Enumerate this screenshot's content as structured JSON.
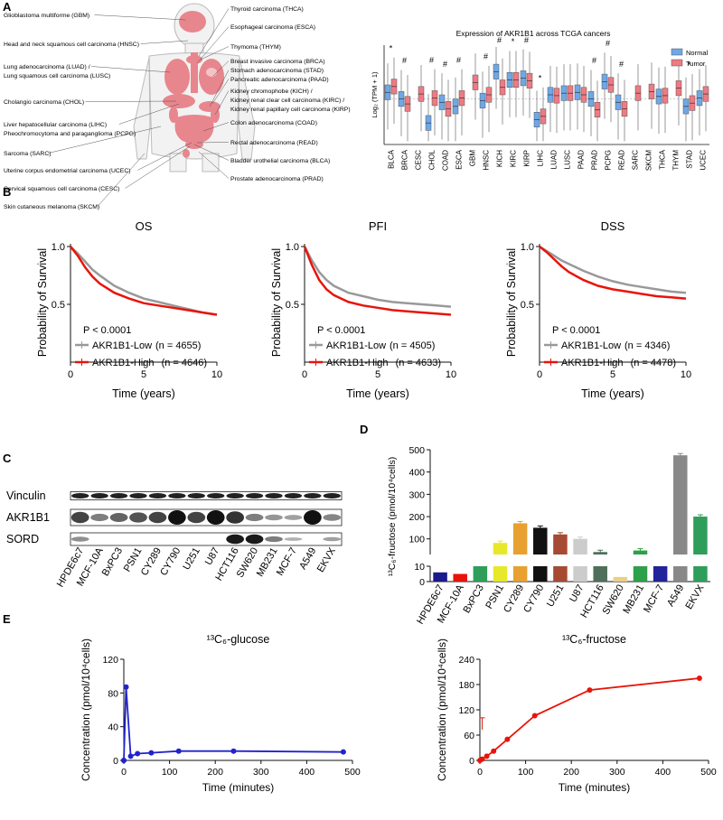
{
  "panels": {
    "a": "A",
    "b": "B",
    "c": "C",
    "d": "D",
    "e": "E"
  },
  "body_map": {
    "left_labels": [
      "Glioblastoma multiforme (GBM)",
      "Head and neck squamous cell carcinoma (HNSC)",
      "Lung adenocarcinoma (LUAD) /",
      "Lung squamous cell carcinoma (LUSC)",
      "Cholangio carcinoma (CHOL)",
      "Liver hepatocellular carcinoma (LIHC)",
      "Pheochromocytoma and paraganglioma (PCPG)",
      "Sarcoma (SARC)",
      "Uterine corpus endometrial carcinoma (UCEC)",
      "Cervical squamous cell carcinoma (CESC)",
      "Skin cutaneous melanoma (SKCM)"
    ],
    "right_labels": [
      "Thyroid carcinoma (THCA)",
      "Esophageal carcinoma (ESCA)",
      "Thymoma (THYM)",
      "Breast invasive carcinoma (BRCA)",
      "Stomach adenocarcinoma (STAD)",
      "Pancreatic adenocarcinoma (PAAD)",
      "Kidney chromophobe (KICH) /",
      "Kidney renal clear cell carcinoma (KIRC) /",
      "Kidney renal papillary cell carcinoma (KIRP)",
      "Colon adenocarcinoma (COAD)",
      "Rectal adenocarcinoma (READ)",
      "Bladder urothelial carcinoma (BLCA)",
      "Prostate adenocarcinoma (PRAD)"
    ]
  },
  "chart_data": [
    {
      "id": "tcga_boxplot",
      "type": "box",
      "title": "Expression of AKR1B1 across TCGA cancers",
      "ylabel": "Log₂ (TPM + 1)",
      "legend": [
        "Normal",
        "Tumor"
      ],
      "legend_position": "top-right",
      "colors": {
        "normal": "#6fa8e8",
        "tumor": "#ee7a84"
      },
      "categories": [
        "BLCA",
        "BRCA",
        "CESC",
        "CHOL",
        "COAD",
        "ESCA",
        "GBM",
        "HNSC",
        "KICH",
        "KIRC",
        "KIRP",
        "LIHC",
        "LUAD",
        "LUSC",
        "PAAD",
        "PRAD",
        "PCPG",
        "READ",
        "SARC",
        "SKCM",
        "THCA",
        "THYM",
        "STAD",
        "UCEC"
      ],
      "normal_median": [
        6.3,
        5.5,
        null,
        2.6,
        5.1,
        4.6,
        null,
        5.3,
        8.8,
        7.8,
        8.0,
        3.0,
        6.0,
        6.2,
        6.3,
        5.5,
        7.6,
        5.1,
        null,
        null,
        5.8,
        null,
        4.6,
        5.6
      ],
      "tumor_median": [
        7.0,
        4.9,
        6.1,
        5.6,
        4.3,
        5.6,
        7.5,
        6.0,
        6.9,
        7.8,
        7.7,
        3.4,
        5.9,
        6.2,
        6.0,
        4.2,
        7.2,
        4.3,
        6.2,
        6.4,
        5.9,
        6.8,
        5.0,
        6.1
      ],
      "significance": [
        "*",
        "#",
        "",
        "#",
        "#",
        "#",
        "",
        "#",
        "#",
        "*",
        "#",
        "*",
        "",
        "",
        "",
        "#",
        "#",
        "#",
        "",
        "",
        "",
        "",
        "*",
        ""
      ]
    },
    {
      "id": "os",
      "type": "line",
      "title": "OS",
      "xlabel": "Time (years)",
      "ylabel": "Probability of Survival",
      "xlim": [
        0,
        10
      ],
      "ylim": [
        0,
        1.0
      ],
      "xticks": [
        "0",
        "5",
        "10"
      ],
      "yticks": [
        "0.5",
        "1.0"
      ],
      "pvalue": "P < 0.0001",
      "series": [
        {
          "name": "AKR1B1-Low",
          "n": "(n = 4655)",
          "color": "#999999",
          "x": [
            0,
            0.5,
            1,
            1.5,
            2,
            3,
            4,
            5,
            6,
            7,
            8,
            9,
            10
          ],
          "y": [
            1.0,
            0.94,
            0.87,
            0.8,
            0.75,
            0.66,
            0.6,
            0.55,
            0.52,
            0.49,
            0.46,
            0.43,
            0.41
          ]
        },
        {
          "name": "AKR1B1-High",
          "n": "(n = 4646)",
          "color": "#e8140a",
          "x": [
            0,
            0.5,
            1,
            1.5,
            2,
            3,
            4,
            5,
            6,
            7,
            8,
            9,
            10
          ],
          "y": [
            1.0,
            0.92,
            0.82,
            0.74,
            0.68,
            0.6,
            0.55,
            0.51,
            0.49,
            0.47,
            0.45,
            0.43,
            0.41
          ]
        }
      ]
    },
    {
      "id": "pfi",
      "type": "line",
      "title": "PFI",
      "xlabel": "Time (years)",
      "ylabel": "Probability of Survival",
      "xlim": [
        0,
        10
      ],
      "ylim": [
        0,
        1.0
      ],
      "xticks": [
        "0",
        "5",
        "10"
      ],
      "yticks": [
        "0.5",
        "1.0"
      ],
      "pvalue": "P < 0.0001",
      "series": [
        {
          "name": "AKR1B1-Low",
          "n": "(n = 4505)",
          "color": "#999999",
          "x": [
            0,
            0.5,
            1,
            1.5,
            2,
            3,
            4,
            5,
            6,
            7,
            8,
            9,
            10
          ],
          "y": [
            1.0,
            0.88,
            0.78,
            0.71,
            0.66,
            0.6,
            0.57,
            0.54,
            0.52,
            0.51,
            0.5,
            0.49,
            0.48
          ]
        },
        {
          "name": "AKR1B1-High",
          "n": "(n = 4633)",
          "color": "#e8140a",
          "x": [
            0,
            0.5,
            1,
            1.5,
            2,
            3,
            4,
            5,
            6,
            7,
            8,
            9,
            10
          ],
          "y": [
            1.0,
            0.84,
            0.71,
            0.63,
            0.58,
            0.52,
            0.49,
            0.47,
            0.45,
            0.44,
            0.43,
            0.42,
            0.41
          ]
        }
      ]
    },
    {
      "id": "dss",
      "type": "line",
      "title": "DSS",
      "xlabel": "Time (years)",
      "ylabel": "Probability of Survival",
      "xlim": [
        0,
        10
      ],
      "ylim": [
        0,
        1.0
      ],
      "xticks": [
        "0",
        "5",
        "10"
      ],
      "yticks": [
        "0.5",
        "1.0"
      ],
      "pvalue": "P < 0.0001",
      "series": [
        {
          "name": "AKR1B1-Low",
          "n": "(n = 4346)",
          "color": "#999999",
          "x": [
            0,
            0.5,
            1,
            1.5,
            2,
            3,
            4,
            5,
            6,
            7,
            8,
            9,
            10
          ],
          "y": [
            1.0,
            0.96,
            0.92,
            0.88,
            0.85,
            0.79,
            0.74,
            0.7,
            0.67,
            0.65,
            0.63,
            0.61,
            0.6
          ]
        },
        {
          "name": "AKR1B1-High",
          "n": "(n = 4478)",
          "color": "#e8140a",
          "x": [
            0,
            0.5,
            1,
            1.5,
            2,
            3,
            4,
            5,
            6,
            7,
            8,
            9,
            10
          ],
          "y": [
            1.0,
            0.95,
            0.89,
            0.83,
            0.78,
            0.71,
            0.66,
            0.63,
            0.61,
            0.59,
            0.57,
            0.56,
            0.55
          ]
        }
      ]
    },
    {
      "id": "fructose_bars",
      "type": "bar",
      "ylabel": "¹³C₆-fructose (pmol/10⁴cells)",
      "yticks_top": [
        "100",
        "200",
        "300",
        "400",
        "500"
      ],
      "yticks_bottom": [
        "0",
        "10"
      ],
      "categories": [
        "HPDE6c7",
        "MCF-10A",
        "BxPC3",
        "PSN1",
        "CY289",
        "CY790",
        "U251",
        "U87",
        "HCT116",
        "SW620",
        "MB231",
        "MCF-7",
        "A549",
        "EKVX"
      ],
      "values": [
        6,
        5,
        29,
        82,
        170,
        150,
        120,
        100,
        41,
        3,
        48,
        16,
        475,
        200
      ],
      "colors": [
        "#1a1a8c",
        "#e8140a",
        "#2e9e5a",
        "#e8e82a",
        "#e8a030",
        "#111111",
        "#a64a33",
        "#cccccc",
        "#4f6f5a",
        "#e8d08a",
        "#2ea04a",
        "#23239a",
        "#888888",
        "#2e9e5a"
      ]
    },
    {
      "id": "glucose_time",
      "type": "line",
      "title": "¹³C₆-glucose",
      "xlabel": "Time (minutes)",
      "ylabel": "Concentration (pmol/10⁴cells)",
      "xlim": [
        0,
        500
      ],
      "ylim": [
        0,
        120
      ],
      "xticks": [
        "0",
        "100",
        "200",
        "300",
        "400",
        "500"
      ],
      "yticks": [
        "0",
        "40",
        "80",
        "120"
      ],
      "series": [
        {
          "name": "",
          "color": "#2222cc",
          "x": [
            0,
            5,
            15,
            30,
            60,
            120,
            240,
            480
          ],
          "y": [
            0,
            87,
            5,
            8,
            9,
            11,
            11,
            10
          ]
        }
      ]
    },
    {
      "id": "fructose_time",
      "type": "line",
      "title": "¹³C₆-fructose",
      "xlabel": "Time (minutes)",
      "ylabel": "Concentration (pmol/10⁴cells)",
      "xlim": [
        0,
        500
      ],
      "ylim": [
        0,
        240
      ],
      "xticks": [
        "0",
        "100",
        "200",
        "300",
        "400",
        "500"
      ],
      "yticks": [
        "0",
        "60",
        "120",
        "180",
        "240"
      ],
      "series": [
        {
          "name": "",
          "color": "#e8140a",
          "x": [
            0,
            5,
            15,
            30,
            60,
            120,
            240,
            480
          ],
          "y": [
            0,
            3,
            10,
            22,
            50,
            106,
            167,
            195
          ]
        }
      ]
    }
  ],
  "western_blot": {
    "rows": [
      "Vinculin",
      "AKR1B1",
      "SORD"
    ],
    "lanes": [
      "HPDE6c7",
      "MCF-10A",
      "BxPC3",
      "PSN1",
      "CY289",
      "CY790",
      "U251",
      "U87",
      "HCT116",
      "SW620",
      "MB231",
      "MCF-7",
      "A549",
      "EKVX"
    ],
    "akr1b1_intensity": [
      0.7,
      0.35,
      0.5,
      0.6,
      0.7,
      1.0,
      0.7,
      1.0,
      0.8,
      0.35,
      0.2,
      0.15,
      1.0,
      0.3
    ],
    "sord_intensity": [
      0.3,
      0.0,
      0.0,
      0.0,
      0.0,
      0.0,
      0.0,
      0.0,
      0.95,
      0.95,
      0.4,
      0.1,
      0.0,
      0.2
    ]
  }
}
